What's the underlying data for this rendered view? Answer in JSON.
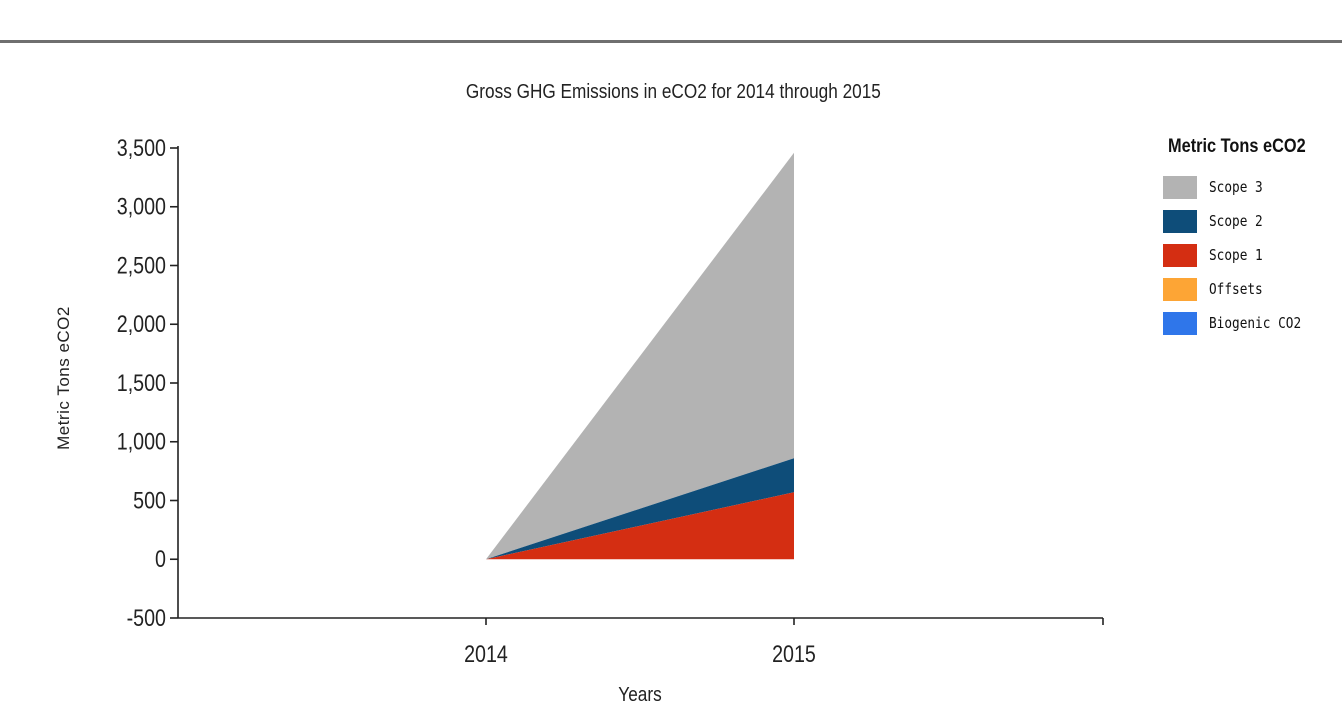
{
  "chart_data": {
    "type": "area",
    "stacked": true,
    "title": "Gross GHG Emissions in eCO2 for 2014 through 2015",
    "xlabel": "Years",
    "ylabel": "Metric Tons eCO2",
    "x": [
      "2014",
      "2015"
    ],
    "ylim": [
      -500,
      3500
    ],
    "yticks": [
      -500,
      0,
      500,
      1000,
      1500,
      2000,
      2500,
      3000,
      3500
    ],
    "ytick_labels": [
      "-500",
      "0",
      "500",
      "1,000",
      "1,500",
      "2,000",
      "2,500",
      "3,000",
      "3,500"
    ],
    "grid": false,
    "legend_title": "Metric Tons eCO2",
    "legend_position": "right",
    "legend": [
      {
        "name": "Scope 3",
        "color": "#b3b3b3"
      },
      {
        "name": "Scope 2",
        "color": "#0e4d79"
      },
      {
        "name": "Scope 1",
        "color": "#d42e12"
      },
      {
        "name": "Offsets",
        "color": "#fda535"
      },
      {
        "name": "Biogenic CO2",
        "color": "#2f76ea"
      }
    ],
    "series": [
      {
        "name": "Scope 1",
        "color": "#d42e12",
        "values": [
          0,
          570
        ]
      },
      {
        "name": "Scope 2",
        "color": "#0e4d79",
        "values": [
          0,
          290
        ]
      },
      {
        "name": "Scope 3",
        "color": "#b3b3b3",
        "values": [
          0,
          2600
        ]
      },
      {
        "name": "Offsets",
        "color": "#fda535",
        "values": [
          0,
          0
        ]
      },
      {
        "name": "Biogenic CO2",
        "color": "#2f76ea",
        "values": [
          0,
          0
        ]
      }
    ]
  }
}
